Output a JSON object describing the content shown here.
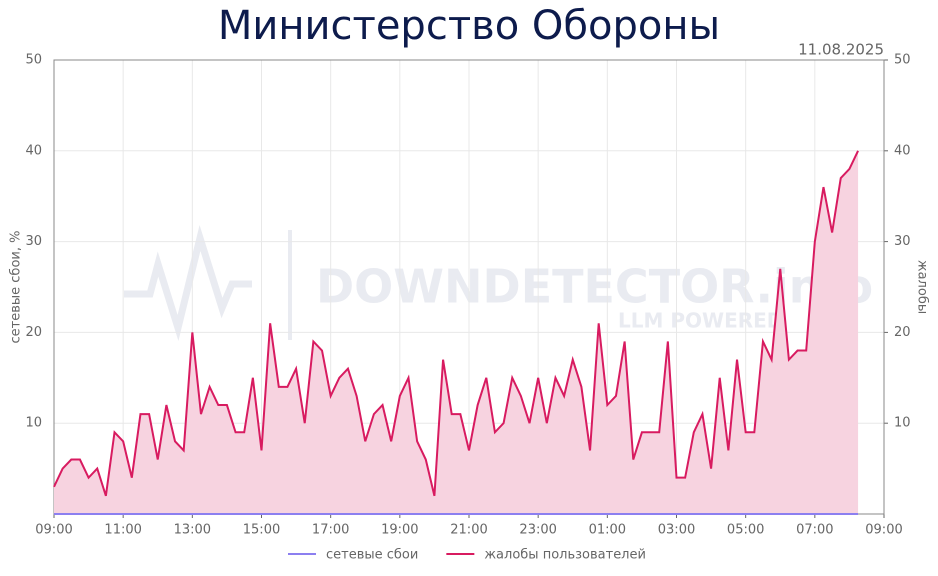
{
  "chart_data": {
    "type": "line",
    "title": "Министерство Обороны",
    "date": "11.08.2025",
    "watermark": "DOWNDETECTOR.info",
    "watermark_sub": "LLM POWERED",
    "ylabel": "сетевые сбои, %",
    "y2label": "жалобы",
    "x": [
      "09:00",
      "09:15",
      "09:30",
      "09:45",
      "10:00",
      "10:15",
      "10:30",
      "10:45",
      "11:00",
      "11:15",
      "11:30",
      "11:45",
      "12:00",
      "12:15",
      "12:30",
      "12:45",
      "13:00",
      "13:15",
      "13:30",
      "13:45",
      "14:00",
      "14:15",
      "14:30",
      "14:45",
      "15:00",
      "15:15",
      "15:30",
      "15:45",
      "16:00",
      "16:15",
      "16:30",
      "16:45",
      "17:00",
      "17:15",
      "17:30",
      "17:45",
      "18:00",
      "18:15",
      "18:30",
      "18:45",
      "19:00",
      "19:15",
      "19:30",
      "19:45",
      "20:00",
      "20:15",
      "20:30",
      "20:45",
      "21:00",
      "21:15",
      "21:30",
      "21:45",
      "22:00",
      "22:15",
      "22:30",
      "22:45",
      "23:00",
      "23:15",
      "23:30",
      "23:45",
      "00:00",
      "00:15",
      "00:30",
      "00:45",
      "01:00",
      "01:15",
      "01:30",
      "01:45",
      "02:00",
      "02:15",
      "02:30",
      "02:45",
      "03:00",
      "03:15",
      "03:30",
      "03:45",
      "04:00",
      "04:15",
      "04:30",
      "04:45",
      "05:00",
      "05:15",
      "05:30",
      "05:45",
      "06:00",
      "06:15",
      "06:30",
      "06:45",
      "07:00",
      "07:15",
      "07:30",
      "07:45",
      "08:00",
      "08:15"
    ],
    "xticks": [
      "09:00",
      "11:00",
      "13:00",
      "15:00",
      "17:00",
      "19:00",
      "21:00",
      "23:00",
      "01:00",
      "03:00",
      "05:00",
      "07:00",
      "09:00"
    ],
    "ylim": [
      0,
      50
    ],
    "yticks": [
      10,
      20,
      30,
      40,
      50
    ],
    "y2lim": [
      0,
      50
    ],
    "y2ticks": [
      10,
      20,
      30,
      40,
      50
    ],
    "grid": true,
    "series": [
      {
        "name": "сетевые сбои",
        "color": "#8c7ff0",
        "values": [
          0,
          0,
          0,
          0,
          0,
          0,
          0,
          0,
          0,
          0,
          0,
          0,
          0,
          0,
          0,
          0,
          0,
          0,
          0,
          0,
          0,
          0,
          0,
          0,
          0,
          0,
          0,
          0,
          0,
          0,
          0,
          0,
          0,
          0,
          0,
          0,
          0,
          0,
          0,
          0,
          0,
          0,
          0,
          0,
          0,
          0,
          0,
          0,
          0,
          0,
          0,
          0,
          0,
          0,
          0,
          0,
          0,
          0,
          0,
          0,
          0,
          0,
          0,
          0,
          0,
          0,
          0,
          0,
          0,
          0,
          0,
          0,
          0,
          0,
          0,
          0,
          0,
          0,
          0,
          0,
          0,
          0,
          0,
          0,
          0,
          0,
          0,
          0,
          0,
          0,
          0,
          0,
          0,
          0
        ]
      },
      {
        "name": "жалобы пользователей",
        "color": "#d81b60",
        "fill": "#f7d3e0",
        "axis": "y2",
        "values": [
          3,
          5,
          6,
          6,
          4,
          5,
          2,
          9,
          8,
          4,
          11,
          11,
          6,
          12,
          8,
          7,
          20,
          11,
          14,
          12,
          12,
          9,
          9,
          15,
          7,
          21,
          14,
          14,
          16,
          10,
          19,
          18,
          13,
          15,
          16,
          13,
          8,
          11,
          12,
          8,
          13,
          15,
          8,
          6,
          2,
          17,
          11,
          11,
          7,
          12,
          15,
          9,
          10,
          15,
          13,
          10,
          15,
          10,
          15,
          13,
          17,
          14,
          7,
          21,
          12,
          13,
          19,
          6,
          9,
          9,
          9,
          19,
          4,
          4,
          9,
          11,
          5,
          15,
          7,
          17,
          9,
          9,
          19,
          17,
          27,
          17,
          18,
          18,
          30,
          36,
          31,
          37,
          38,
          40
        ]
      }
    ]
  }
}
